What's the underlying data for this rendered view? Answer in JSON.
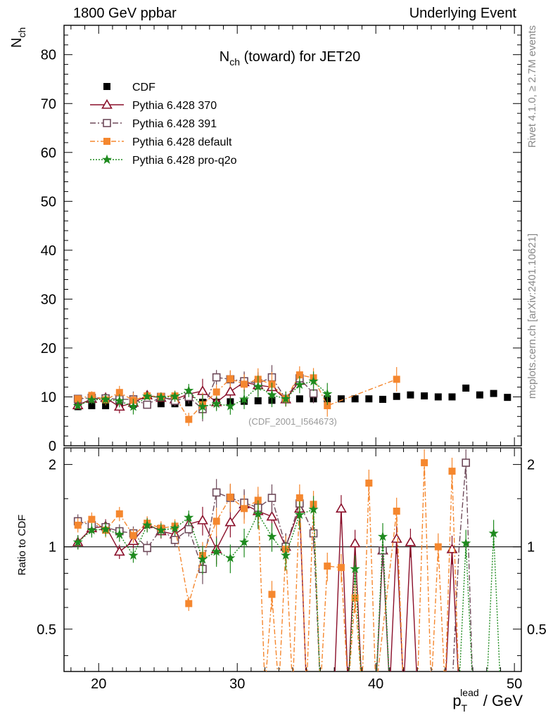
{
  "header": {
    "left": "1800 GeV ppbar",
    "right": "Underlying Event"
  },
  "side_labels": {
    "rivet": "Rivet 4.1.0, ≥ 2.7M events",
    "mcplots": "mcplots.cern.ch [arXiv:2401.10621]"
  },
  "chart_data": {
    "type": "scatter",
    "title_main": "N",
    "title_sub": "ch",
    "title_rest": " (toward) for JET20",
    "ylabel_main": "N",
    "ylabel_sub": "ch",
    "ratio_ylabel": "Ratio to CDF",
    "xlabel_main": "p",
    "xlabel_sub": "T",
    "xlabel_sup": "lead",
    "xlabel_rest": " / GeV",
    "watermark": "(CDF_2001_I564673)",
    "xlim": [
      17.5,
      50.5
    ],
    "ylim": [
      0,
      86
    ],
    "ratio_ylim": [
      0.35,
      2.3
    ],
    "x_ticks": [
      20,
      30,
      40,
      50
    ],
    "y_ticks": [
      0,
      10,
      20,
      30,
      40,
      50,
      60,
      70,
      80
    ],
    "ratio_ticks": [
      0.5,
      1,
      2
    ],
    "series": [
      {
        "name": "CDF",
        "color": "#000000",
        "marker": "filled-square",
        "x": [
          18.5,
          19.5,
          20.5,
          21.5,
          22.5,
          23.5,
          24.5,
          25.5,
          26.5,
          27.5,
          28.5,
          29.5,
          30.5,
          31.5,
          32.5,
          33.5,
          34.5,
          35.5,
          36.5,
          37.5,
          38.5,
          39.5,
          40.5,
          41.5,
          42.5,
          43.5,
          44.5,
          45.5,
          46.5,
          47.5,
          48.5,
          49.5
        ],
        "y": [
          8.0,
          8.2,
          8.2,
          8.3,
          8.5,
          8.4,
          8.6,
          8.6,
          8.8,
          8.9,
          8.9,
          9.0,
          9.1,
          9.2,
          9.3,
          9.5,
          9.6,
          9.6,
          9.6,
          9.6,
          9.6,
          9.6,
          9.5,
          10.1,
          10.4,
          10.2,
          10.0,
          10.0,
          11.8,
          10.4,
          10.7,
          9.9
        ]
      },
      {
        "name": "Pythia 6.428 370",
        "color": "#8a0f2a",
        "marker": "open-triangle",
        "x": [
          18.5,
          19.5,
          20.5,
          21.5,
          22.5,
          23.5,
          24.5,
          25.5,
          26.5,
          27.5,
          28.5,
          29.5,
          30.5,
          31.5,
          32.5,
          33.5,
          34.5
        ],
        "y": [
          8.3,
          9.6,
          9.8,
          8.0,
          8.8,
          10.3,
          9.8,
          9.5,
          10.6,
          11.2,
          8.9,
          11.1,
          13.0,
          12.4,
          12.0,
          9.5,
          13.3
        ]
      },
      {
        "name": "Pythia 6.428 391",
        "color": "#6e4a5a",
        "marker": "open-square",
        "x": [
          18.5,
          19.5,
          20.5,
          21.5,
          22.5,
          23.5,
          24.5,
          25.5,
          26.5,
          27.5,
          28.5,
          29.5,
          30.5,
          31.5,
          32.5,
          33.5,
          34.5,
          35.5
        ],
        "y": [
          9.6,
          9.8,
          9.7,
          9.5,
          9.5,
          8.4,
          10.0,
          9.2,
          10.0,
          7.5,
          14.0,
          13.6,
          13.2,
          12.8,
          14.0,
          9.6,
          13.8,
          10.7
        ]
      },
      {
        "name": "Pythia 6.428 default",
        "color": "#f5872e",
        "marker": "filled-square",
        "x": [
          18.5,
          19.5,
          20.5,
          21.5,
          22.5,
          23.5,
          24.5,
          25.5,
          26.5,
          27.5,
          28.5,
          29.5,
          30.5,
          31.5,
          32.5,
          33.5,
          34.5,
          35.5,
          36.5,
          41.5
        ],
        "y": [
          9.6,
          10.3,
          9.4,
          10.9,
          9.3,
          10.2,
          10.1,
          10.2,
          5.4,
          8.4,
          11.0,
          13.7,
          12.6,
          13.6,
          12.6,
          9.6,
          14.5,
          13.9,
          8.2,
          13.6
        ]
      },
      {
        "name": "Pythia 6.428 pro-q2o",
        "color": "#1e8a1e",
        "marker": "star",
        "x": [
          18.5,
          19.5,
          20.5,
          21.5,
          22.5,
          23.5,
          24.5,
          25.5,
          26.5,
          27.5,
          28.5,
          29.5,
          30.5,
          31.5,
          32.5,
          33.5,
          34.5,
          35.5,
          36.5
        ],
        "y": [
          8.2,
          9.4,
          9.5,
          9.2,
          8.0,
          10.1,
          9.9,
          10.1,
          11.3,
          8.0,
          8.6,
          8.1,
          9.5,
          12.1,
          10.4,
          9.6,
          12.5,
          13.2,
          10.6
        ]
      }
    ],
    "ratio_series": [
      {
        "name": "Pythia 6.428 370",
        "x": [
          18.5,
          19.5,
          20.5,
          21.5,
          22.5,
          23.5,
          24.5,
          25.5,
          26.5,
          27.5,
          28.5,
          29.5,
          30.5,
          31.5,
          32.5,
          33.5,
          34.5,
          35.0,
          35.5,
          36.0,
          37.0,
          37.5,
          38.0,
          38.5,
          39.0,
          40.0,
          40.5,
          41.0,
          41.5,
          42.0,
          42.5,
          43.0,
          45.0,
          45.5,
          46.0
        ],
        "y": [
          1.04,
          1.17,
          1.19,
          0.96,
          1.05,
          1.21,
          1.14,
          1.11,
          1.21,
          1.25,
          0.98,
          1.23,
          1.43,
          1.35,
          1.29,
          1.0,
          1.38,
          0.3,
          0.3,
          0.3,
          0.3,
          1.38,
          0.3,
          1.03,
          0.3,
          0.3,
          0.97,
          0.3,
          1.07,
          0.3,
          1.04,
          0.3,
          0.3,
          0.98,
          0.3
        ]
      },
      {
        "name": "Pythia 6.428 391",
        "x": [
          18.5,
          19.5,
          20.5,
          21.5,
          22.5,
          23.5,
          24.5,
          25.5,
          26.5,
          27.5,
          28.5,
          29.5,
          30.5,
          31.5,
          32.5,
          33.5,
          34.5,
          35.5,
          36.0,
          40.0,
          40.5,
          41.0,
          45.5,
          46.0,
          46.5,
          47.0
        ],
        "y": [
          1.24,
          1.2,
          1.18,
          1.14,
          1.12,
          0.99,
          1.16,
          1.06,
          1.16,
          0.83,
          1.58,
          1.51,
          1.45,
          1.39,
          1.51,
          1.0,
          1.44,
          1.12,
          0.3,
          0.3,
          0.97,
          0.3,
          0.3,
          0.98,
          2.03,
          0.3
        ]
      },
      {
        "name": "Pythia 6.428 default",
        "x": [
          18.5,
          19.5,
          20.5,
          21.5,
          22.5,
          23.5,
          24.5,
          25.5,
          26.5,
          27.5,
          28.5,
          29.5,
          30.5,
          31.5,
          32.0,
          32.5,
          33.0,
          33.5,
          34.0,
          34.5,
          35.0,
          35.5,
          36.0,
          36.5,
          37.5,
          38.0,
          38.5,
          39.0,
          39.5,
          40.0,
          41.5,
          42.0,
          43.0,
          43.5,
          44.0,
          44.5,
          45.0,
          45.5,
          46.0
        ],
        "y": [
          1.2,
          1.26,
          1.15,
          1.32,
          1.1,
          1.22,
          1.17,
          1.19,
          0.62,
          0.93,
          1.24,
          1.52,
          1.38,
          1.48,
          0.3,
          0.67,
          0.3,
          0.98,
          0.3,
          1.51,
          0.3,
          1.43,
          0.3,
          0.85,
          0.84,
          0.3,
          0.65,
          0.3,
          1.71,
          0.3,
          1.35,
          0.3,
          0.3,
          2.03,
          0.3,
          1.0,
          0.3,
          1.89,
          0.3
        ]
      },
      {
        "name": "Pythia 6.428 pro-q2o",
        "x": [
          18.5,
          19.5,
          20.5,
          21.5,
          22.5,
          23.5,
          24.5,
          25.5,
          26.5,
          27.5,
          28.5,
          29.5,
          30.5,
          31.5,
          32.5,
          33.5,
          34.5,
          35.5,
          36.0,
          37.5,
          38.0,
          38.5,
          39.0,
          40.0,
          40.5,
          41.0,
          46.0,
          46.5,
          47.0,
          48.0,
          48.5,
          49.0
        ],
        "y": [
          1.04,
          1.15,
          1.16,
          1.11,
          0.93,
          1.2,
          1.15,
          1.17,
          1.28,
          0.9,
          0.96,
          0.91,
          1.04,
          1.32,
          1.09,
          0.93,
          1.31,
          1.37,
          0.3,
          0.3,
          0.3,
          0.83,
          0.3,
          0.3,
          1.09,
          0.3,
          0.3,
          1.03,
          0.3,
          0.3,
          1.12,
          0.3
        ]
      }
    ]
  }
}
